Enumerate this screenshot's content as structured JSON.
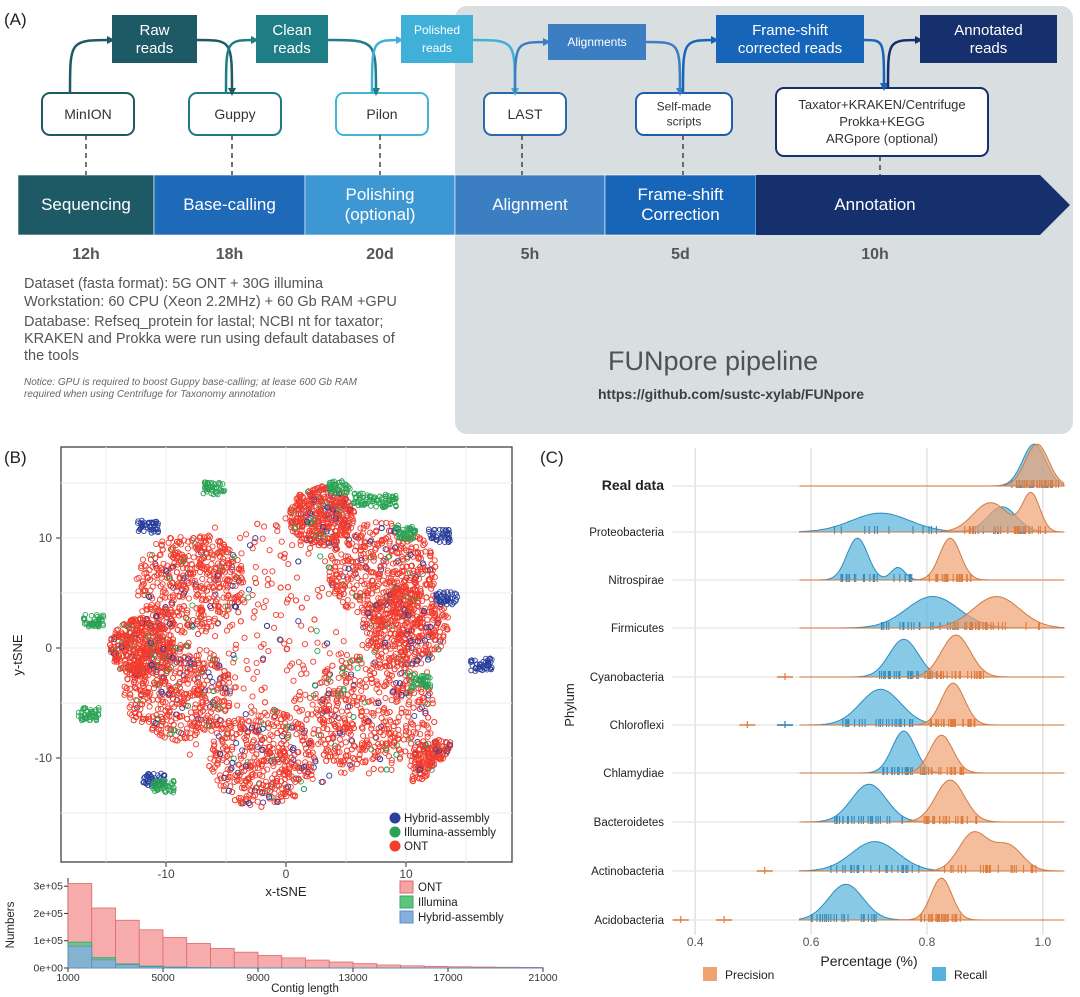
{
  "panel_labels": {
    "a": "(A)",
    "b": "(B)",
    "c": "(C)"
  },
  "pipeline": {
    "stages": [
      {
        "label": "Sequencing",
        "time": "12h",
        "color": "#1d5a66"
      },
      {
        "label": "Base-calling",
        "time": "18h",
        "color": "#1e69b8"
      },
      {
        "label": "Polishing\n(optional)",
        "time": "20d",
        "color": "#3d97d3"
      },
      {
        "label": "Alignment",
        "time": "5h",
        "color": "#3b7fc2"
      },
      {
        "label": "Frame-shift\nCorrection",
        "time": "5d",
        "color": "#1765b8"
      },
      {
        "label": "Annotation",
        "time": "10h",
        "color": "#16306d"
      }
    ],
    "tools": [
      {
        "label": "MinION",
        "color": "#1d5a66"
      },
      {
        "label": "Guppy",
        "color": "#1e7b85"
      },
      {
        "label": "Pilon",
        "color": "#43b6d6"
      },
      {
        "label": "LAST",
        "color": "#2b6aa6"
      },
      {
        "label": "Self-made\nscripts",
        "color": "#1e5fa8"
      },
      {
        "label": "Taxator+KRAKEN/Centrifuge\nProkka+KEGG\nARGpore (optional)",
        "color": "#16306d"
      }
    ],
    "outputs": [
      {
        "label": "Raw\nreads",
        "color": "#1d5a66"
      },
      {
        "label": "Clean\nreads",
        "color": "#1f7d86"
      },
      {
        "label": "Polished\nreads",
        "color": "#3fb1d8"
      },
      {
        "label": "Alignments",
        "color": "#3b7fc2"
      },
      {
        "label": "Frame-shift\ncorrected reads",
        "color": "#1765b8"
      },
      {
        "label": "Annotated\nreads",
        "color": "#16306d"
      }
    ],
    "info_lines": [
      "Dataset (fasta format): 5G ONT + 30G illumina",
      "Workstation:  60 CPU (Xeon 2.2MHz) + 60 Gb RAM +GPU",
      "Database: Refseq_protein for lastal; NCBI nt for  taxator;",
      "KRAKEN and Prokka were run using default databases of",
      "the tools"
    ],
    "notice_lines": [
      "Notice: GPU is required to boost Guppy base-calling; at lease 600 Gb RAM",
      "required when using Centrifuge for Taxonomy annotation"
    ],
    "title": "FUNpore pipeline",
    "url": "https://github.com/sustc-xylab/FUNpore"
  },
  "chart_data": [
    {
      "type": "scatter",
      "xlabel": "x-tSNE",
      "ylabel": "y-tSNE",
      "x_ticks": [
        -10,
        0,
        10
      ],
      "y_ticks": [
        10,
        0,
        -10
      ],
      "legend": {
        "placement": "bottom-right"
      },
      "series": [
        {
          "name": "Hybrid-assembly",
          "color": "#2a3f9b"
        },
        {
          "name": "Illumina-assembly",
          "color": "#2aa354"
        },
        {
          "name": "ONT",
          "color": "#f23c2d"
        }
      ]
    },
    {
      "type": "bar",
      "xlabel": "Contig length",
      "ylabel": "Numbers",
      "x_ticks": [
        "1000",
        "5000",
        "9000",
        "13000",
        "17000",
        "21000"
      ],
      "y_ticks": [
        "0e+00",
        "1e+05",
        "2e+05",
        "3e+05"
      ],
      "ylim": [
        0,
        330000
      ],
      "bin_width": 1000,
      "bins_start": 1000,
      "series": [
        {
          "name": "ONT",
          "color": "#f5a3a3",
          "values": [
            310000,
            220000,
            175000,
            140000,
            112000,
            90000,
            72000,
            58000,
            46000,
            37000,
            29000,
            22000,
            16000,
            11000,
            8000,
            6000,
            4500,
            3500,
            2800,
            2200
          ]
        },
        {
          "name": "Illumina",
          "color": "#5cc47e",
          "values": [
            95000,
            38000,
            15000,
            7000,
            3500,
            1800,
            900,
            500,
            300,
            150,
            80,
            40,
            20,
            10,
            5,
            3,
            2,
            1,
            1,
            1
          ]
        },
        {
          "name": "Hybrid-assembly",
          "color": "#86b0dc",
          "values": [
            80000,
            30000,
            12000,
            5000,
            2500,
            1200,
            600,
            300,
            150,
            80,
            40,
            20,
            10,
            5,
            3,
            2,
            1,
            1,
            1,
            1
          ]
        }
      ]
    },
    {
      "type": "area",
      "xlabel": "Percentage (%)",
      "ylabel": "Phylum",
      "x_ticks": [
        0.4,
        0.6,
        0.8,
        1.0
      ],
      "xlim": [
        0.36,
        1.04
      ],
      "categories": [
        "Real data",
        "Proteobacteria",
        "Nitrospirae",
        "Firmicutes",
        "Cyanobacteria",
        "Chloroflexi",
        "Chlamydiae",
        "Bacteroidetes",
        "Actinobacteria",
        "Acidobacteria"
      ],
      "legend": {
        "placement": "bottom"
      },
      "series": [
        {
          "name": "Precision",
          "color": "#f0a272",
          "peaks": [
            [
              [
                0.99,
                0.02,
                1.0
              ]
            ],
            [
              [
                0.91,
                0.03,
                0.7
              ],
              [
                0.98,
                0.015,
                0.9
              ]
            ],
            [
              [
                0.84,
                0.018,
                1.0
              ]
            ],
            [
              [
                0.92,
                0.04,
                0.75
              ]
            ],
            [
              [
                0.85,
                0.025,
                1.0
              ]
            ],
            [
              [
                0.845,
                0.02,
                1.0
              ]
            ],
            [
              [
                0.825,
                0.02,
                0.9
              ]
            ],
            [
              [
                0.84,
                0.025,
                1.0
              ]
            ],
            [
              [
                0.88,
                0.025,
                0.9
              ],
              [
                0.94,
                0.025,
                0.6
              ]
            ],
            [
              [
                0.825,
                0.018,
                1.0
              ]
            ]
          ]
        },
        {
          "name": "Recall",
          "color": "#55b2dc",
          "peaks": [
            [
              [
                0.985,
                0.02,
                1.0
              ]
            ],
            [
              [
                0.72,
                0.05,
                0.45
              ],
              [
                0.93,
                0.025,
                0.6
              ]
            ],
            [
              [
                0.68,
                0.018,
                1.0
              ],
              [
                0.75,
                0.012,
                0.3
              ]
            ],
            [
              [
                0.81,
                0.045,
                0.75
              ]
            ],
            [
              [
                0.76,
                0.025,
                0.9
              ]
            ],
            [
              [
                0.72,
                0.035,
                0.85
              ]
            ],
            [
              [
                0.76,
                0.02,
                1.0
              ]
            ],
            [
              [
                0.7,
                0.03,
                0.9
              ]
            ],
            [
              [
                0.71,
                0.04,
                0.7
              ]
            ],
            [
              [
                0.66,
                0.03,
                0.85
              ]
            ]
          ]
        }
      ]
    }
  ]
}
